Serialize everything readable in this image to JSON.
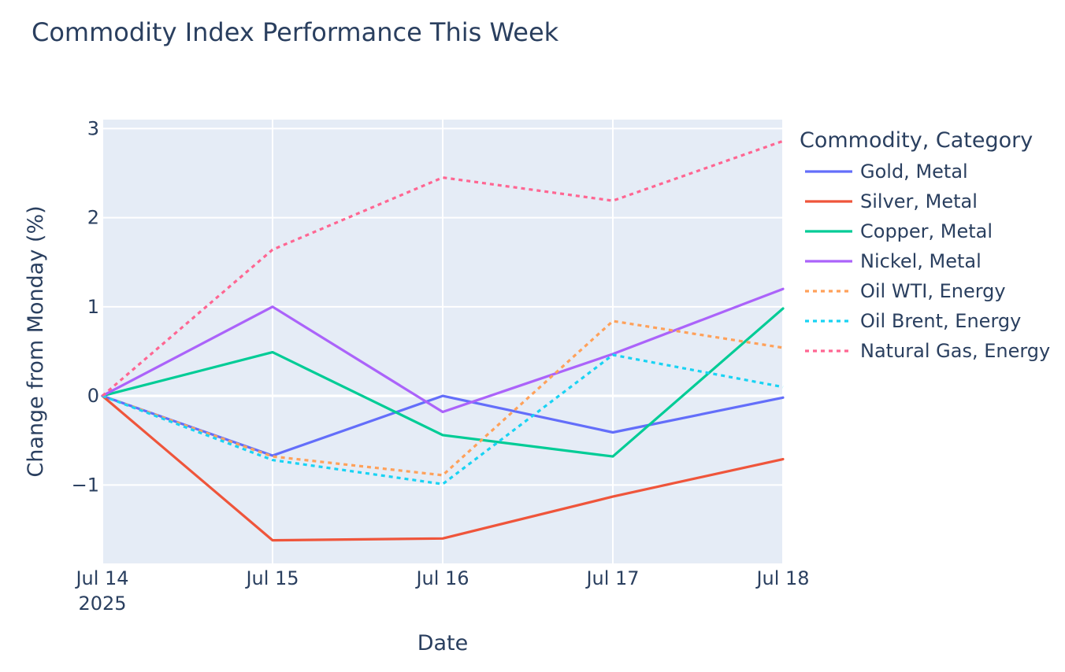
{
  "chart_data": {
    "type": "line",
    "title": "Commodity Index Performance This Week",
    "xlabel": "Date",
    "ylabel": "Change from Monday (%)",
    "x": [
      "2025-07-14",
      "2025-07-15",
      "2025-07-16",
      "2025-07-17",
      "2025-07-18"
    ],
    "x_tick_labels": [
      "Jul 14",
      "Jul 15",
      "Jul 16",
      "Jul 17",
      "Jul 18"
    ],
    "x_tick_sublabels": [
      "2025",
      "",
      "",
      "",
      ""
    ],
    "y_ticks": [
      -1,
      0,
      1,
      2,
      3
    ],
    "y_tick_labels": [
      "−1",
      "0",
      "1",
      "2",
      "3"
    ],
    "ylim": [
      -1.88,
      3.1
    ],
    "grid": true,
    "legend_title": "Commodity, Category",
    "legend_position": "right",
    "series": [
      {
        "name": "Gold, Metal",
        "values": [
          0,
          -0.67,
          0.0,
          -0.41,
          -0.02
        ],
        "color": "#636efa",
        "dash": "solid"
      },
      {
        "name": "Silver, Metal",
        "values": [
          0,
          -1.62,
          -1.6,
          -1.13,
          -0.71
        ],
        "color": "#ef553b",
        "dash": "solid"
      },
      {
        "name": "Copper, Metal",
        "values": [
          0,
          0.49,
          -0.44,
          -0.68,
          0.98
        ],
        "color": "#00cc96",
        "dash": "solid"
      },
      {
        "name": "Nickel, Metal",
        "values": [
          0,
          1.0,
          -0.18,
          0.47,
          1.2
        ],
        "color": "#ab63fa",
        "dash": "solid"
      },
      {
        "name": "Oil WTI, Energy",
        "values": [
          0,
          -0.68,
          -0.89,
          0.84,
          0.54
        ],
        "color": "#ffa15a",
        "dash": "dot"
      },
      {
        "name": "Oil Brent, Energy",
        "values": [
          0,
          -0.72,
          -0.99,
          0.46,
          0.1
        ],
        "color": "#19d3f3",
        "dash": "dot"
      },
      {
        "name": "Natural Gas, Energy",
        "values": [
          0,
          1.64,
          2.45,
          2.19,
          2.86
        ],
        "color": "#ff6692",
        "dash": "dot"
      }
    ]
  }
}
